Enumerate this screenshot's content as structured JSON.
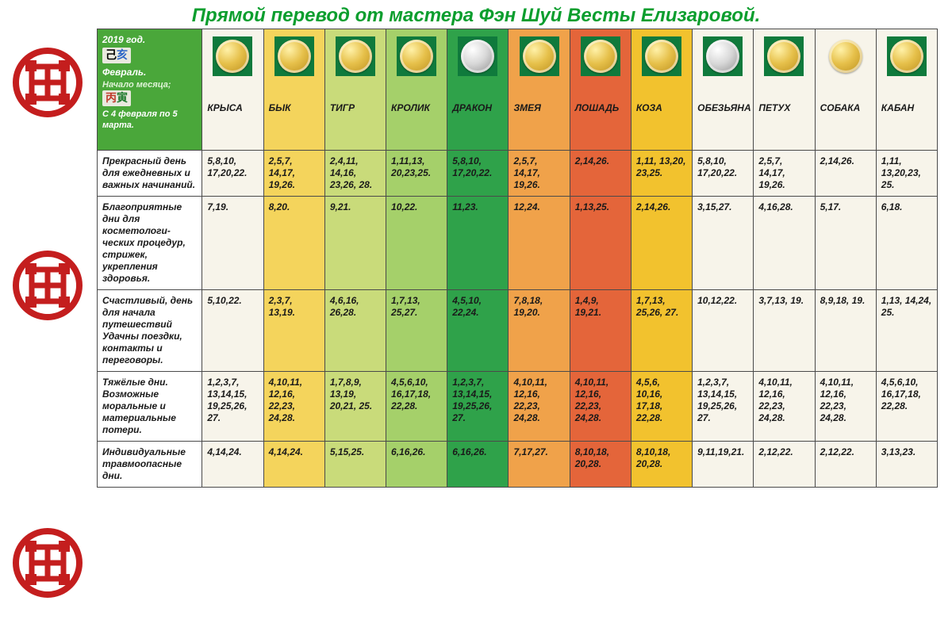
{
  "title": "Прямой перевод от мастера Фэн Шуй Весты Елизаровой.",
  "title_color": "#0b9e2e",
  "title_fontsize": 24,
  "logo_color": "#c41e1e",
  "info": {
    "year": "2019 год.",
    "chinese_year": {
      "ch1": "己",
      "ch1_color": "#000000",
      "ch2": "亥",
      "ch2_color": "#2a65c7"
    },
    "month": "Февраль.",
    "month_start_label": "Начало месяца;",
    "chinese_month": {
      "ch1": "丙",
      "ch1_color": "#c0392b",
      "ch2": "寅",
      "ch2_color": "#1f7a2e"
    },
    "date_range": "С 4 февраля по 5 марта.",
    "bg": "#4aa73a"
  },
  "zodiac": [
    {
      "name": "КРЫСА",
      "bg": "#f7f4ea",
      "coin": "gold",
      "box": true
    },
    {
      "name": "БЫК",
      "bg": "#f4d45c",
      "coin": "gold",
      "box": true
    },
    {
      "name": "ТИГР",
      "bg": "#c9db7a",
      "coin": "gold",
      "box": true
    },
    {
      "name": "КРОЛИК",
      "bg": "#a5d06a",
      "coin": "gold",
      "box": true
    },
    {
      "name": "ДРАКОН",
      "bg": "#2fa24a",
      "coin": "silver",
      "box": true
    },
    {
      "name": "ЗМЕЯ",
      "bg": "#f0a24a",
      "coin": "gold",
      "box": true
    },
    {
      "name": "ЛОШАДЬ",
      "bg": "#e4653a",
      "coin": "gold",
      "box": true
    },
    {
      "name": "КОЗА",
      "bg": "#f2c22e",
      "coin": "gold",
      "box": true
    },
    {
      "name": "ОБЕЗЬЯНА",
      "bg": "#f7f4ea",
      "coin": "silver",
      "box": true
    },
    {
      "name": "ПЕТУХ",
      "bg": "#f7f4ea",
      "coin": "gold",
      "box": true
    },
    {
      "name": "СОБАКА",
      "bg": "#f7f4ea",
      "coin": "gold",
      "box": false
    },
    {
      "name": "КАБАН",
      "bg": "#f7f4ea",
      "coin": "gold",
      "box": true
    }
  ],
  "rows": [
    {
      "label": "Прекрасный день для  ежедневных и важных начинаний.",
      "cells": [
        "5,8,10, 17,20,22.",
        "2,5,7, 14,17, 19,26.",
        "2,4,11, 14,16, 23,26, 28.",
        "1,11,13, 20,23,25.",
        "5,8,10, 17,20,22.",
        "2,5,7, 14,17, 19,26.",
        "2,14,26.",
        "1,11, 13,20, 23,25.",
        "5,8,10, 17,20,22.",
        "2,5,7, 14,17, 19,26.",
        "2,14,26.",
        "1,11, 13,20,23, 25."
      ]
    },
    {
      "label": "Благоприятные дни для косметологи-ческих процедур, стрижек, укрепления здоровья.",
      "cells": [
        "7,19.",
        "8,20.",
        "9,21.",
        "10,22.",
        "11,23.",
        "12,24.",
        "1,13,25.",
        "2,14,26.",
        "3,15,27.",
        "4,16,28.",
        "5,17.",
        "6,18."
      ]
    },
    {
      "label": "Счастливый, день для начала путешествий Удачны поездки, контакты и переговоры.",
      "cells": [
        "5,10,22.",
        "2,3,7, 13,19.",
        "4,6,16, 26,28.",
        "1,7,13, 25,27.",
        "4,5,10, 22,24.",
        "7,8,18, 19,20.",
        "1,4,9, 19,21.",
        "1,7,13, 25,26, 27.",
        "10,12,22.",
        "3,7,13, 19.",
        "8,9,18, 19.",
        "1,13, 14,24, 25."
      ]
    },
    {
      "label": "Тяжёлые дни. Возможные моральные и материальные потери.",
      "cells": [
        "1,2,3,7, 13,14,15, 19,25,26, 27.",
        "4,10,11, 12,16, 22,23, 24,28.",
        "1,7,8,9, 13,19, 20,21, 25.",
        "4,5,6,10, 16,17,18, 22,28.",
        "1,2,3,7, 13,14,15, 19,25,26, 27.",
        "4,10,11, 12,16, 22,23, 24,28.",
        "4,10,11, 12,16, 22,23, 24,28.",
        "4,5,6, 10,16, 17,18, 22,28.",
        "1,2,3,7, 13,14,15, 19,25,26, 27.",
        "4,10,11, 12,16, 22,23, 24,28.",
        "4,10,11, 12,16, 22,23, 24,28.",
        "4,5,6,10, 16,17,18, 22,28."
      ]
    },
    {
      "label": "Индивидуальные травмоопасные дни.",
      "cells": [
        "4,14,24.",
        "4,14,24.",
        "5,15,25.",
        "6,16,26.",
        "6,16,26.",
        "7,17,27.",
        "8,10,18, 20,28.",
        "8,10,18, 20,28.",
        "9,11,19,21.",
        "2,12,22.",
        "2,12,22.",
        "3,13,23."
      ]
    }
  ]
}
